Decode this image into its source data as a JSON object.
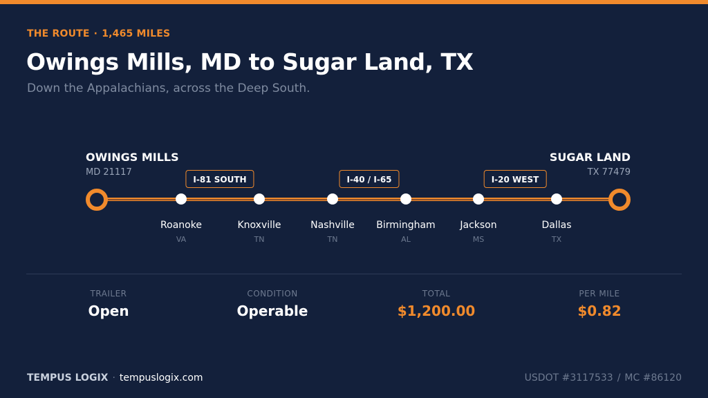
{
  "header": {
    "eyebrow_left": "THE ROUTE",
    "eyebrow_sep": "·",
    "eyebrow_right": "1,465 MILES",
    "title": "Owings Mills, MD to Sugar Land, TX",
    "subtitle": "Down the Appalachians, across the Deep South."
  },
  "route": {
    "origin": {
      "name": "OWINGS MILLS",
      "sub": "MD 21117"
    },
    "destination": {
      "name": "SUGAR LAND",
      "sub": "TX 77479"
    },
    "stops": [
      {
        "city": "Roanoke",
        "state": "VA"
      },
      {
        "city": "Knoxville",
        "state": "TN"
      },
      {
        "city": "Nashville",
        "state": "TN"
      },
      {
        "city": "Birmingham",
        "state": "AL"
      },
      {
        "city": "Jackson",
        "state": "MS"
      },
      {
        "city": "Dallas",
        "state": "TX"
      }
    ],
    "highways": [
      "I-81 SOUTH",
      "I-40 / I-65",
      "I-20 WEST"
    ]
  },
  "stats": [
    {
      "label": "TRAILER",
      "value": "Open"
    },
    {
      "label": "CONDITION",
      "value": "Operable"
    },
    {
      "label": "TOTAL",
      "value": "$1,200.00"
    },
    {
      "label": "PER MILE",
      "value": "$0.82"
    }
  ],
  "footer": {
    "brand": "TEMPUS LOGIX",
    "sep": "·",
    "website": "tempuslogix.com",
    "usdot": "USDOT #3117533",
    "slash": "/",
    "mc": "MC #86120"
  },
  "colors": {
    "accent": "#f08a2c",
    "background": "#13203b"
  }
}
